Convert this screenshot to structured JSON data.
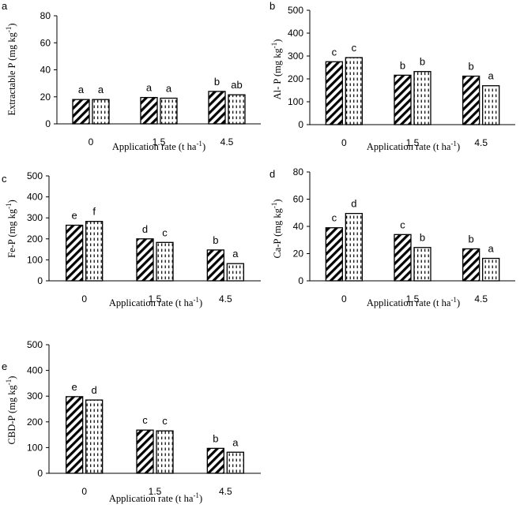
{
  "colors": {
    "ink": "#000000",
    "background": "#ffffff"
  },
  "chart_data": [
    {
      "panel": "a",
      "type": "bar",
      "categories": [
        "0",
        "1.5",
        "4.5"
      ],
      "series": [
        {
          "name": "series-1",
          "pattern": "diagonal-hatch",
          "values": [
            18,
            19.5,
            24
          ]
        },
        {
          "name": "series-2",
          "pattern": "dashed-vertical",
          "values": [
            18,
            19,
            21.5
          ]
        }
      ],
      "letters": [
        [
          "a",
          "a"
        ],
        [
          "a",
          "a"
        ],
        [
          "b",
          "ab"
        ]
      ],
      "ylim": [
        0,
        80
      ],
      "yticks": [
        0,
        20,
        40,
        60,
        80
      ],
      "ylabel_text": "Extractable P (mg kg",
      "ylabel_sup": "-1",
      "ylabel_close": ")",
      "xlabel_text": "Application rate (t ha",
      "xlabel_sup": "-1",
      "xlabel_close": ")"
    },
    {
      "panel": "b",
      "type": "bar",
      "categories": [
        "0",
        "1.5",
        "4.5"
      ],
      "series": [
        {
          "name": "series-1",
          "pattern": "diagonal-hatch",
          "values": [
            275,
            216,
            212
          ]
        },
        {
          "name": "series-2",
          "pattern": "dashed-vertical",
          "values": [
            293,
            232,
            170
          ]
        }
      ],
      "letters": [
        [
          "c",
          "c"
        ],
        [
          "b",
          "b"
        ],
        [
          "b",
          "a"
        ]
      ],
      "ylim": [
        0,
        500
      ],
      "yticks": [
        0,
        100,
        200,
        300,
        400,
        500
      ],
      "ylabel_text": "Al- P (mg kg",
      "ylabel_sup": "-1",
      "ylabel_close": ")",
      "xlabel_text": "Application rate (t ha",
      "xlabel_sup": "-1",
      "xlabel_close": ")"
    },
    {
      "panel": "c",
      "type": "bar",
      "categories": [
        "0",
        "1.5",
        "4.5"
      ],
      "series": [
        {
          "name": "series-1",
          "pattern": "diagonal-hatch",
          "values": [
            265,
            200,
            147
          ]
        },
        {
          "name": "series-2",
          "pattern": "dashed-vertical",
          "values": [
            283,
            183,
            82
          ]
        }
      ],
      "letters": [
        [
          "e",
          "f"
        ],
        [
          "d",
          "c"
        ],
        [
          "b",
          "a"
        ]
      ],
      "ylim": [
        0,
        500
      ],
      "yticks": [
        0,
        100,
        200,
        300,
        400,
        500
      ],
      "ylabel_text": "Fe-P (mg kg",
      "ylabel_sup": "-1",
      "ylabel_close": ")",
      "xlabel_text": "Application rate (t ha",
      "xlabel_sup": "-1",
      "xlabel_close": ")"
    },
    {
      "panel": "d",
      "type": "bar",
      "categories": [
        "0",
        "1.5",
        "4.5"
      ],
      "series": [
        {
          "name": "series-1",
          "pattern": "diagonal-hatch",
          "values": [
            39,
            34,
            23.5
          ]
        },
        {
          "name": "series-2",
          "pattern": "dashed-vertical",
          "values": [
            49.5,
            24.5,
            16.5
          ]
        }
      ],
      "letters": [
        [
          "c",
          "d"
        ],
        [
          "c",
          "b"
        ],
        [
          "b",
          "a"
        ]
      ],
      "ylim": [
        0,
        80
      ],
      "yticks": [
        0,
        20,
        40,
        60,
        80
      ],
      "ylabel_text": "Ca-P (mg kg",
      "ylabel_sup": "-1",
      "ylabel_close": ")",
      "xlabel_text": "Application rate (t ha",
      "xlabel_sup": "-1",
      "xlabel_close": ")"
    },
    {
      "panel": "e",
      "type": "bar",
      "categories": [
        "0",
        "1.5",
        "4.5"
      ],
      "series": [
        {
          "name": "series-1",
          "pattern": "diagonal-hatch",
          "values": [
            298,
            168,
            97
          ]
        },
        {
          "name": "series-2",
          "pattern": "dashed-vertical",
          "values": [
            285,
            165,
            82
          ]
        }
      ],
      "letters": [
        [
          "e",
          "d"
        ],
        [
          "c",
          "c"
        ],
        [
          "b",
          "a"
        ]
      ],
      "ylim": [
        0,
        500
      ],
      "yticks": [
        0,
        100,
        200,
        300,
        400,
        500
      ],
      "ylabel_text": "CBD-P (mg kg",
      "ylabel_sup": "-1",
      "ylabel_close": ")",
      "xlabel_text": "Application rate (t ha",
      "xlabel_sup": "-1",
      "xlabel_close": ")"
    }
  ]
}
